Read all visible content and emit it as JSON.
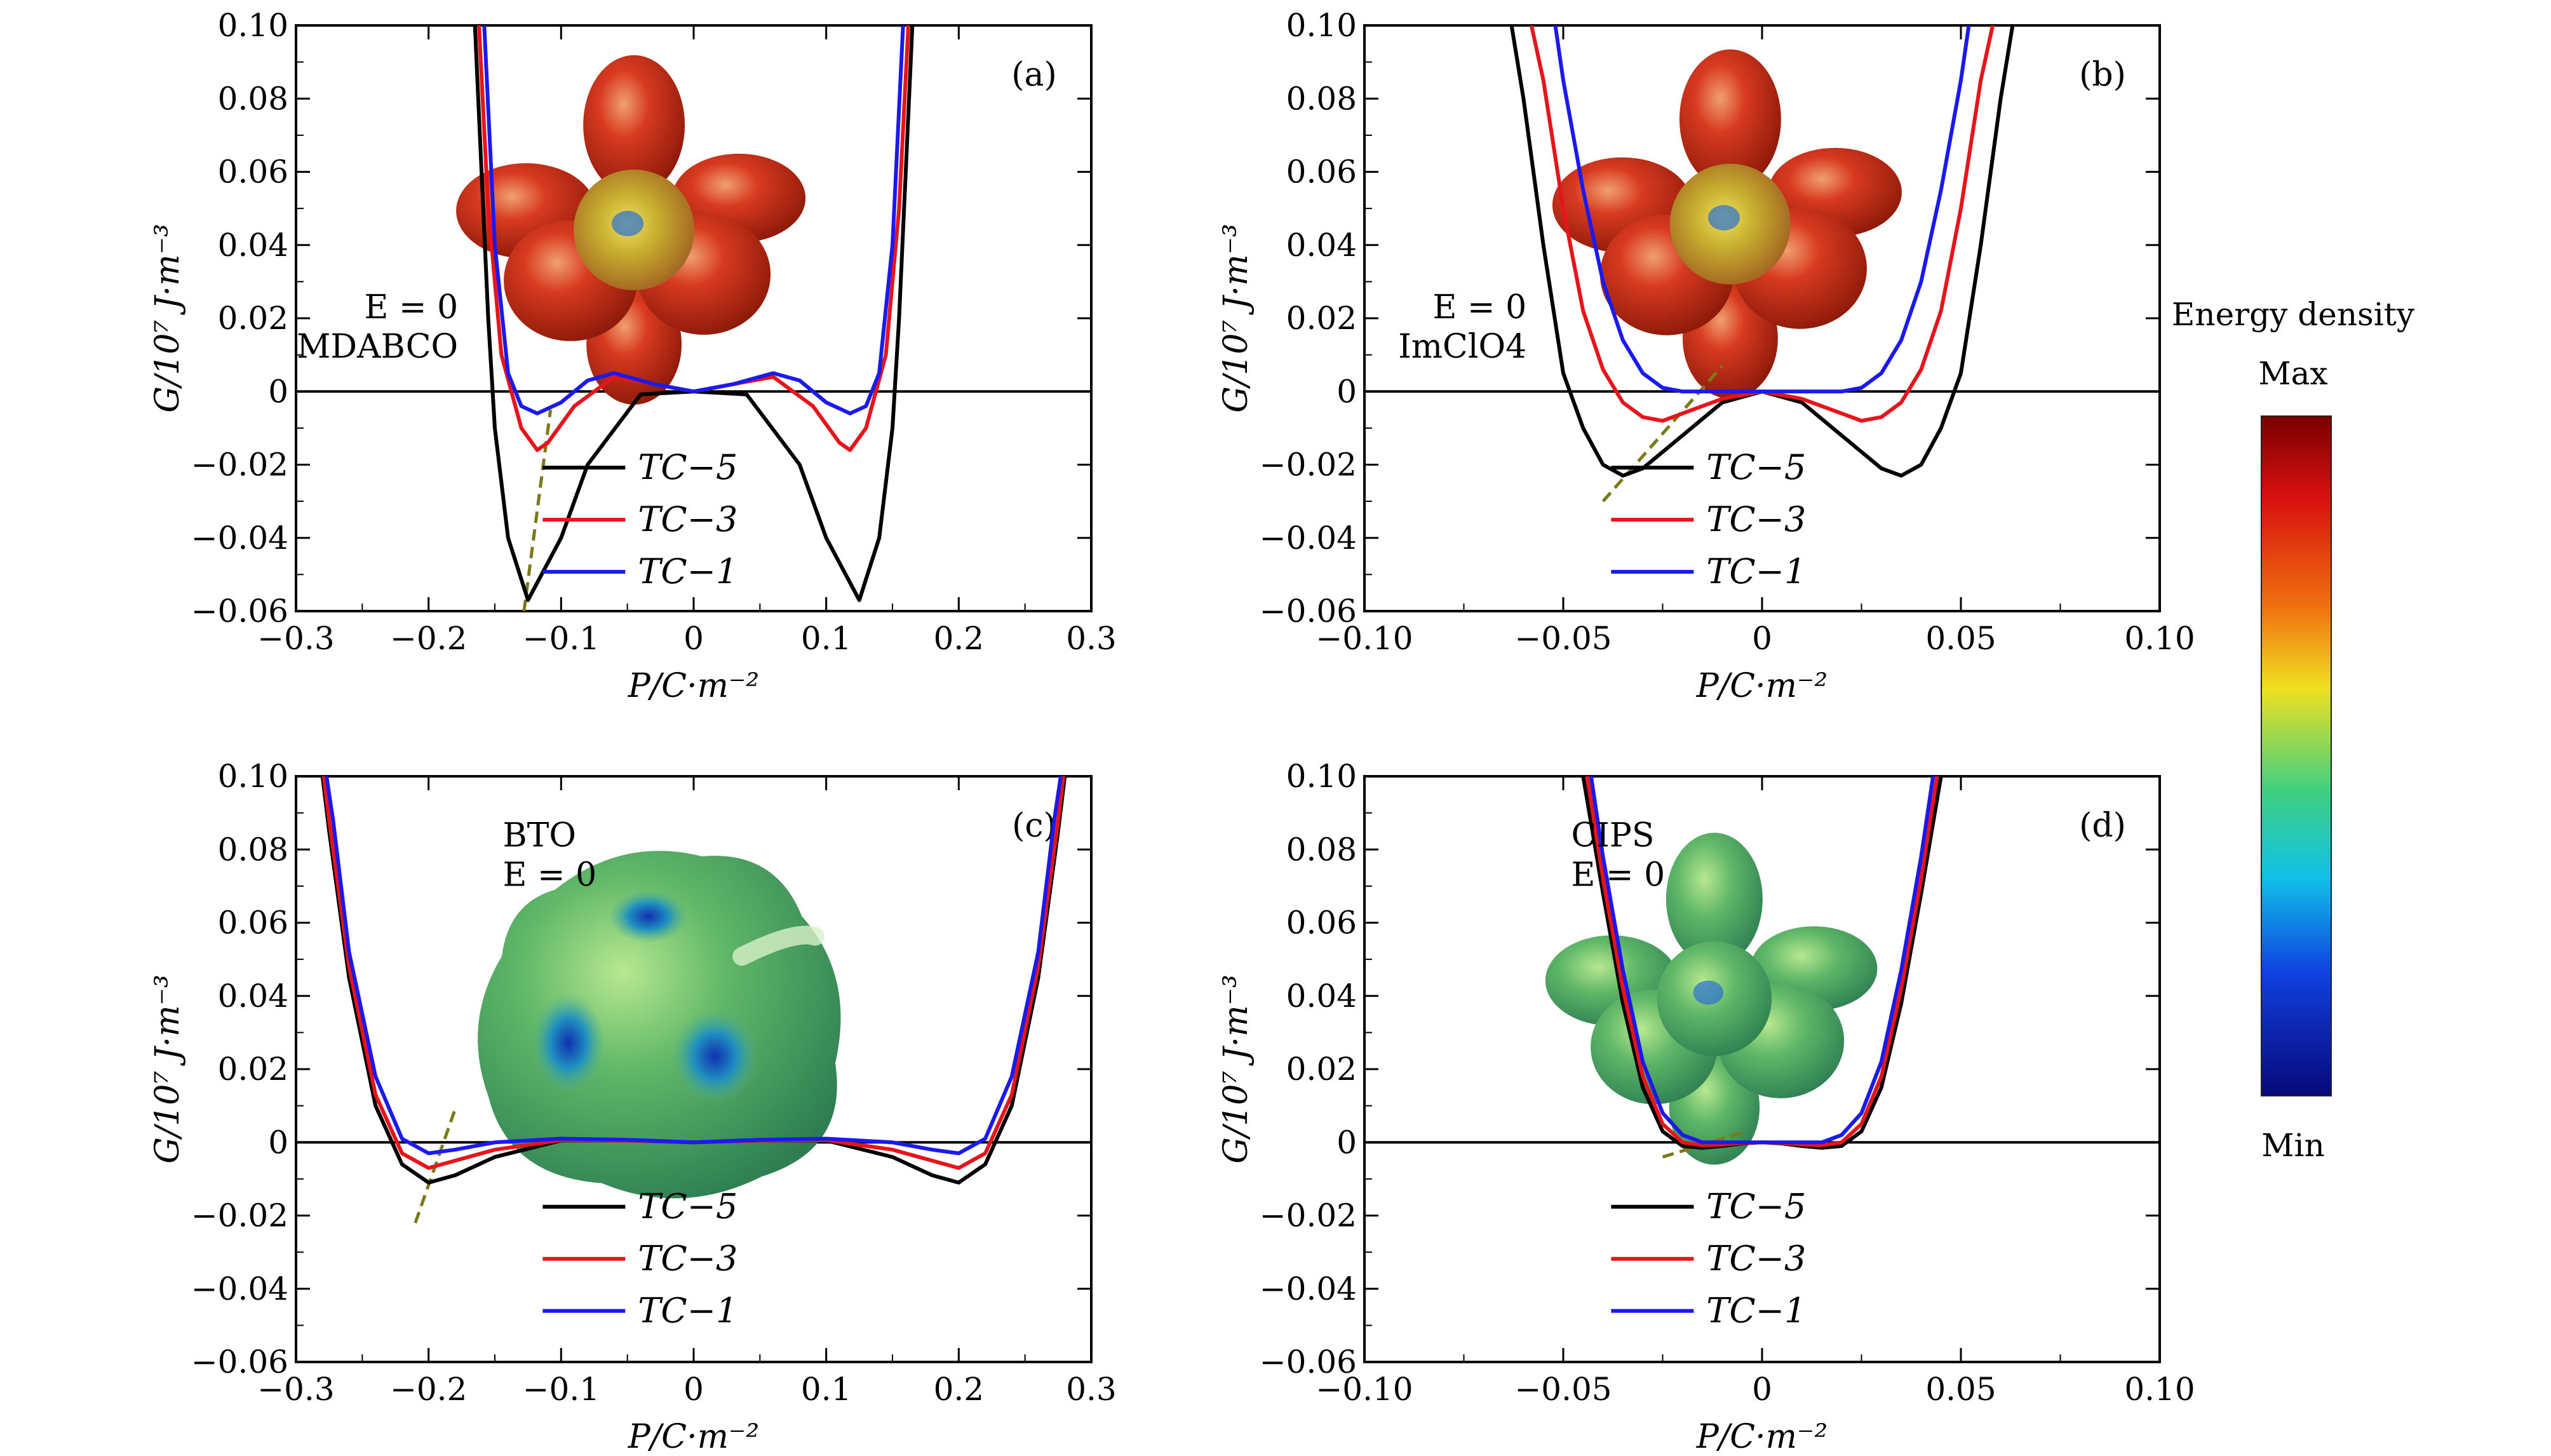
{
  "colorbar": {
    "title": "Energy density",
    "max_label": "Max",
    "min_label": "Min"
  },
  "colors": {
    "Tc-5": "#000000",
    "Tc-3": "#e8141c",
    "Tc-1": "#1a1aee",
    "guide": "#7a7a1a"
  },
  "chart_data": [
    {
      "type": "line",
      "panel_label": "(a)",
      "annotation": [
        "E = 0",
        "MDABCO"
      ],
      "xlabel": "P/C·m⁻²",
      "ylabel": "G/10⁷ J·m⁻³",
      "xlim": [
        -0.3,
        0.3
      ],
      "ylim": [
        -0.06,
        0.1
      ],
      "xticks": [
        -0.3,
        -0.2,
        -0.1,
        0,
        0.1,
        0.2,
        0.3
      ],
      "xtick_labels": [
        "−0.3",
        "−0.2",
        "−0.1",
        "0",
        "0.1",
        "0.2",
        "0.3"
      ],
      "yticks": [
        -0.06,
        -0.04,
        -0.02,
        0,
        0.02,
        0.04,
        0.06,
        0.08,
        0.1
      ],
      "ytick_labels": [
        "−0.06",
        "−0.04",
        "−0.02",
        "0",
        "0.02",
        "0.04",
        "0.06",
        "0.08",
        "0.10"
      ],
      "grid": false,
      "legend_placement": "bottom-center",
      "series": [
        {
          "name": "TC−5",
          "color_key": "Tc-5",
          "points": [
            [
              0,
              0
            ],
            [
              0.04,
              -0.0008
            ],
            [
              0.08,
              -0.02
            ],
            [
              0.1,
              -0.04
            ],
            [
              0.125,
              -0.057
            ],
            [
              0.14,
              -0.04
            ],
            [
              0.15,
              -0.01
            ],
            [
              0.155,
              0.02
            ],
            [
              0.16,
              0.06
            ],
            [
              0.165,
              0.1
            ]
          ]
        },
        {
          "name": "TC−3",
          "color_key": "Tc-3",
          "points": [
            [
              0,
              0
            ],
            [
              0.03,
              0.002
            ],
            [
              0.06,
              0.004
            ],
            [
              0.09,
              -0.004
            ],
            [
              0.11,
              -0.014
            ],
            [
              0.118,
              -0.016
            ],
            [
              0.13,
              -0.01
            ],
            [
              0.145,
              0.01
            ],
            [
              0.155,
              0.05
            ],
            [
              0.162,
              0.1
            ]
          ]
        },
        {
          "name": "TC−1",
          "color_key": "Tc-1",
          "points": [
            [
              0,
              0
            ],
            [
              0.03,
              0.002
            ],
            [
              0.06,
              0.005
            ],
            [
              0.08,
              0.003
            ],
            [
              0.1,
              -0.003
            ],
            [
              0.118,
              -0.006
            ],
            [
              0.13,
              -0.004
            ],
            [
              0.14,
              0.005
            ],
            [
              0.15,
              0.04
            ],
            [
              0.158,
              0.1
            ]
          ]
        }
      ],
      "guide_line": [
        [
          -0.128,
          -0.06
        ],
        [
          -0.108,
          -0.005
        ]
      ]
    },
    {
      "type": "line",
      "panel_label": "(b)",
      "annotation": [
        "E = 0",
        "ImClO4"
      ],
      "xlabel": "P/C·m⁻²",
      "ylabel": "G/10⁷ J·m⁻³",
      "xlim": [
        -0.1,
        0.1
      ],
      "ylim": [
        -0.06,
        0.1
      ],
      "xticks": [
        -0.1,
        -0.05,
        0,
        0.05,
        0.1
      ],
      "xtick_labels": [
        "−0.10",
        "−0.05",
        "0",
        "0.05",
        "0.10"
      ],
      "yticks": [
        -0.06,
        -0.04,
        -0.02,
        0,
        0.02,
        0.04,
        0.06,
        0.08,
        0.1
      ],
      "ytick_labels": [
        "−0.06",
        "−0.04",
        "−0.02",
        "0",
        "0.02",
        "0.04",
        "0.06",
        "0.08",
        "0.10"
      ],
      "grid": false,
      "legend_placement": "bottom-center",
      "series": [
        {
          "name": "TC−5",
          "color_key": "Tc-5",
          "points": [
            [
              0,
              0
            ],
            [
              0.01,
              -0.003
            ],
            [
              0.02,
              -0.012
            ],
            [
              0.03,
              -0.021
            ],
            [
              0.035,
              -0.023
            ],
            [
              0.04,
              -0.02
            ],
            [
              0.045,
              -0.01
            ],
            [
              0.05,
              0.005
            ],
            [
              0.055,
              0.04
            ],
            [
              0.06,
              0.08
            ],
            [
              0.063,
              0.1
            ]
          ]
        },
        {
          "name": "TC−3",
          "color_key": "Tc-3",
          "points": [
            [
              0,
              0
            ],
            [
              0.01,
              -0.002
            ],
            [
              0.02,
              -0.006
            ],
            [
              0.025,
              -0.008
            ],
            [
              0.03,
              -0.007
            ],
            [
              0.035,
              -0.003
            ],
            [
              0.04,
              0.006
            ],
            [
              0.045,
              0.022
            ],
            [
              0.05,
              0.05
            ],
            [
              0.055,
              0.085
            ],
            [
              0.058,
              0.1
            ]
          ]
        },
        {
          "name": "TC−1",
          "color_key": "Tc-1",
          "points": [
            [
              0,
              0
            ],
            [
              0.01,
              0
            ],
            [
              0.02,
              0
            ],
            [
              0.025,
              0.001
            ],
            [
              0.03,
              0.005
            ],
            [
              0.035,
              0.014
            ],
            [
              0.04,
              0.03
            ],
            [
              0.045,
              0.055
            ],
            [
              0.05,
              0.085
            ],
            [
              0.052,
              0.1
            ]
          ]
        }
      ],
      "guide_line": [
        [
          -0.04,
          -0.03
        ],
        [
          -0.01,
          0.007
        ]
      ]
    },
    {
      "type": "line",
      "panel_label": "(c)",
      "annotation": [
        "BTO",
        "E = 0"
      ],
      "xlabel": "P/C·m⁻²",
      "ylabel": "G/10⁷ J·m⁻³",
      "xlim": [
        -0.3,
        0.3
      ],
      "ylim": [
        -0.06,
        0.1
      ],
      "xticks": [
        -0.3,
        -0.2,
        -0.1,
        0,
        0.1,
        0.2,
        0.3
      ],
      "xtick_labels": [
        "−0.3",
        "−0.2",
        "−0.1",
        "0",
        "0.1",
        "0.2",
        "0.3"
      ],
      "yticks": [
        -0.06,
        -0.04,
        -0.02,
        0,
        0.02,
        0.04,
        0.06,
        0.08,
        0.1
      ],
      "ytick_labels": [
        "−0.06",
        "−0.04",
        "−0.02",
        "0",
        "0.02",
        "0.04",
        "0.06",
        "0.08",
        "0.10"
      ],
      "grid": false,
      "legend_placement": "bottom-center",
      "series": [
        {
          "name": "TC−5",
          "color_key": "Tc-5",
          "points": [
            [
              0,
              0
            ],
            [
              0.05,
              0.0005
            ],
            [
              0.1,
              0.0005
            ],
            [
              0.15,
              -0.004
            ],
            [
              0.18,
              -0.009
            ],
            [
              0.2,
              -0.011
            ],
            [
              0.22,
              -0.006
            ],
            [
              0.24,
              0.01
            ],
            [
              0.26,
              0.045
            ],
            [
              0.275,
              0.085
            ],
            [
              0.28,
              0.1
            ]
          ]
        },
        {
          "name": "TC−3",
          "color_key": "Tc-3",
          "points": [
            [
              0,
              0
            ],
            [
              0.05,
              0.0005
            ],
            [
              0.1,
              0.0006
            ],
            [
              0.15,
              -0.002
            ],
            [
              0.18,
              -0.005
            ],
            [
              0.2,
              -0.007
            ],
            [
              0.22,
              -0.003
            ],
            [
              0.24,
              0.013
            ],
            [
              0.26,
              0.048
            ],
            [
              0.275,
              0.088
            ],
            [
              0.279,
              0.1
            ]
          ]
        },
        {
          "name": "TC−1",
          "color_key": "Tc-1",
          "points": [
            [
              0,
              0
            ],
            [
              0.05,
              0.0007
            ],
            [
              0.1,
              0.001
            ],
            [
              0.15,
              0
            ],
            [
              0.18,
              -0.002
            ],
            [
              0.2,
              -0.003
            ],
            [
              0.22,
              0.001
            ],
            [
              0.24,
              0.018
            ],
            [
              0.26,
              0.052
            ],
            [
              0.272,
              0.088
            ],
            [
              0.277,
              0.1
            ]
          ]
        }
      ],
      "guide_line": [
        [
          -0.21,
          -0.022
        ],
        [
          -0.18,
          0.009
        ]
      ]
    },
    {
      "type": "line",
      "panel_label": "(d)",
      "annotation": [
        "CIPS",
        "E = 0"
      ],
      "xlabel": "P/C·m⁻²",
      "ylabel": "G/10⁷ J·m⁻³",
      "xlim": [
        -0.1,
        0.1
      ],
      "ylim": [
        -0.06,
        0.1
      ],
      "xticks": [
        -0.1,
        -0.05,
        0,
        0.05,
        0.1
      ],
      "xtick_labels": [
        "−0.10",
        "−0.05",
        "0",
        "0.05",
        "0.10"
      ],
      "yticks": [
        -0.06,
        -0.04,
        -0.02,
        0,
        0.02,
        0.04,
        0.06,
        0.08,
        0.1
      ],
      "ytick_labels": [
        "−0.06",
        "−0.04",
        "−0.02",
        "0",
        "0.02",
        "0.04",
        "0.06",
        "0.08",
        "0.10"
      ],
      "grid": false,
      "legend_placement": "bottom-center",
      "series": [
        {
          "name": "TC−5",
          "color_key": "Tc-5",
          "points": [
            [
              0,
              0
            ],
            [
              0.005,
              -0.0003
            ],
            [
              0.01,
              -0.001
            ],
            [
              0.015,
              -0.0015
            ],
            [
              0.02,
              -0.001
            ],
            [
              0.025,
              0.003
            ],
            [
              0.03,
              0.015
            ],
            [
              0.035,
              0.038
            ],
            [
              0.04,
              0.068
            ],
            [
              0.045,
              0.1
            ]
          ]
        },
        {
          "name": "TC−3",
          "color_key": "Tc-3",
          "points": [
            [
              0,
              0
            ],
            [
              0.005,
              -0.0002
            ],
            [
              0.01,
              -0.0006
            ],
            [
              0.015,
              -0.0008
            ],
            [
              0.02,
              0
            ],
            [
              0.025,
              0.005
            ],
            [
              0.03,
              0.018
            ],
            [
              0.035,
              0.042
            ],
            [
              0.04,
              0.072
            ],
            [
              0.044,
              0.1
            ]
          ]
        },
        {
          "name": "TC−1",
          "color_key": "Tc-1",
          "points": [
            [
              0,
              0
            ],
            [
              0.005,
              0
            ],
            [
              0.01,
              0
            ],
            [
              0.015,
              0
            ],
            [
              0.02,
              0.002
            ],
            [
              0.025,
              0.008
            ],
            [
              0.03,
              0.022
            ],
            [
              0.035,
              0.047
            ],
            [
              0.04,
              0.078
            ],
            [
              0.043,
              0.1
            ]
          ]
        }
      ],
      "guide_line": [
        [
          -0.025,
          -0.004
        ],
        [
          -0.004,
          0.003
        ]
      ]
    }
  ]
}
